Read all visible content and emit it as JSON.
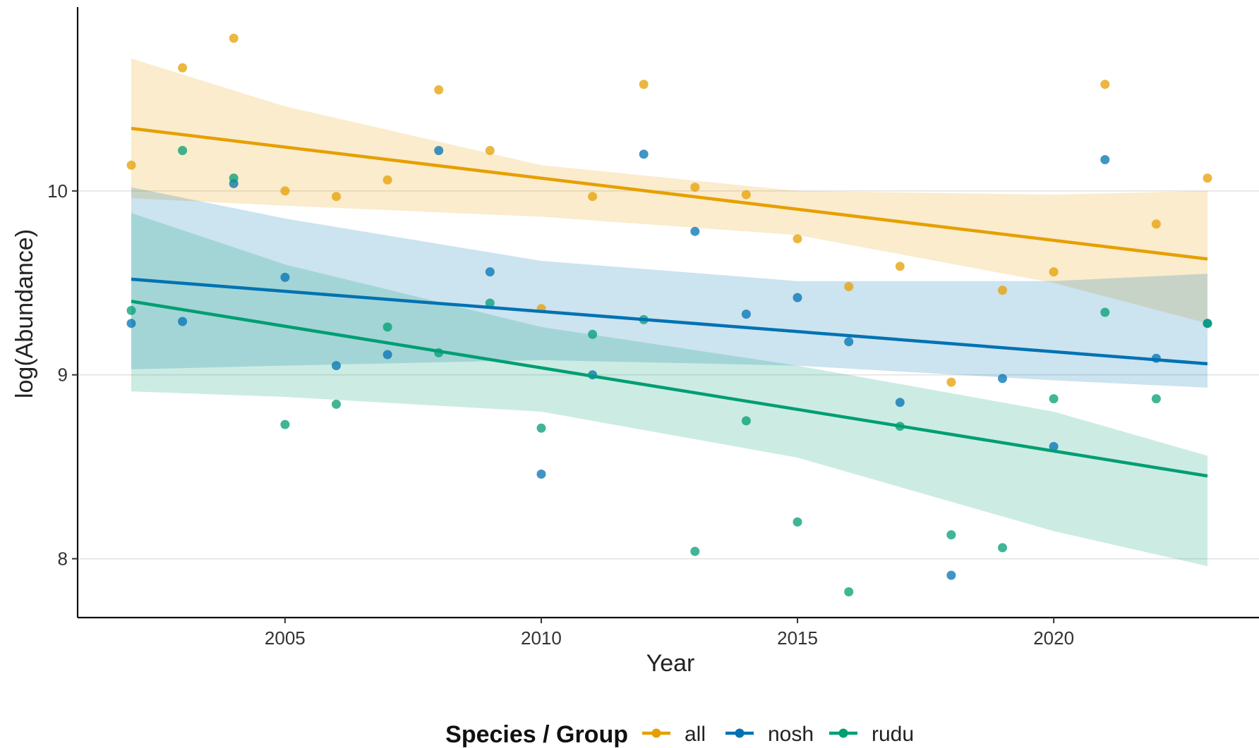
{
  "chart_data": {
    "type": "scatter",
    "title": "",
    "xlabel": "Year",
    "ylabel": "log(Abundance)",
    "xlim": [
      2002,
      2024
    ],
    "ylim": [
      7.68,
      11.0
    ],
    "x_ticks": [
      2005,
      2010,
      2015,
      2020
    ],
    "y_ticks": [
      8,
      9,
      10
    ],
    "grid": "horizontal major",
    "legend": {
      "title": "Species / Group",
      "position": "bottom"
    },
    "series": [
      {
        "name": "all",
        "color": "#E69F00",
        "points": [
          [
            2002,
            10.14
          ],
          [
            2003,
            10.67
          ],
          [
            2004,
            10.83
          ],
          [
            2005,
            10.0
          ],
          [
            2006,
            9.97
          ],
          [
            2007,
            10.06
          ],
          [
            2008,
            10.55
          ],
          [
            2009,
            10.22
          ],
          [
            2010,
            9.36
          ],
          [
            2011,
            9.97
          ],
          [
            2012,
            10.58
          ],
          [
            2013,
            10.02
          ],
          [
            2014,
            9.98
          ],
          [
            2015,
            9.74
          ],
          [
            2016,
            9.48
          ],
          [
            2017,
            9.59
          ],
          [
            2018,
            8.96
          ],
          [
            2019,
            9.46
          ],
          [
            2020,
            9.56
          ],
          [
            2021,
            10.58
          ],
          [
            2022,
            9.82
          ],
          [
            2023,
            10.07
          ]
        ],
        "fit": {
          "x": [
            2002,
            2023
          ],
          "y": [
            10.34,
            9.63
          ]
        },
        "ci_band": {
          "x": [
            2002,
            2005,
            2010,
            2015,
            2020,
            2023
          ],
          "lower": [
            9.96,
            9.92,
            9.86,
            9.76,
            9.5,
            9.28
          ],
          "upper": [
            10.72,
            10.46,
            10.14,
            10.0,
            9.98,
            10.0
          ]
        }
      },
      {
        "name": "nosh",
        "color": "#0072B2",
        "points": [
          [
            2002,
            9.28
          ],
          [
            2003,
            9.29
          ],
          [
            2004,
            10.04
          ],
          [
            2005,
            9.53
          ],
          [
            2006,
            9.05
          ],
          [
            2007,
            9.11
          ],
          [
            2008,
            10.22
          ],
          [
            2009,
            9.56
          ],
          [
            2010,
            8.46
          ],
          [
            2011,
            9.0
          ],
          [
            2012,
            10.2
          ],
          [
            2013,
            9.78
          ],
          [
            2014,
            9.33
          ],
          [
            2015,
            9.42
          ],
          [
            2016,
            9.18
          ],
          [
            2017,
            8.85
          ],
          [
            2018,
            7.91
          ],
          [
            2019,
            8.98
          ],
          [
            2020,
            8.61
          ],
          [
            2021,
            10.17
          ],
          [
            2022,
            9.09
          ],
          [
            2023,
            9.28
          ]
        ],
        "fit": {
          "x": [
            2002,
            2023
          ],
          "y": [
            9.52,
            9.06
          ]
        },
        "ci_band": {
          "x": [
            2002,
            2005,
            2010,
            2015,
            2020,
            2023
          ],
          "lower": [
            9.03,
            9.05,
            9.08,
            9.05,
            8.97,
            8.93
          ],
          "upper": [
            10.02,
            9.85,
            9.62,
            9.51,
            9.51,
            9.55
          ]
        }
      },
      {
        "name": "rudu",
        "color": "#009E73",
        "points": [
          [
            2002,
            9.35
          ],
          [
            2003,
            10.22
          ],
          [
            2004,
            10.07
          ],
          [
            2005,
            8.73
          ],
          [
            2006,
            8.84
          ],
          [
            2007,
            9.26
          ],
          [
            2008,
            9.12
          ],
          [
            2009,
            9.39
          ],
          [
            2010,
            8.71
          ],
          [
            2011,
            9.22
          ],
          [
            2012,
            9.3
          ],
          [
            2013,
            8.04
          ],
          [
            2014,
            8.75
          ],
          [
            2015,
            8.2
          ],
          [
            2016,
            7.82
          ],
          [
            2017,
            8.72
          ],
          [
            2018,
            8.13
          ],
          [
            2019,
            8.06
          ],
          [
            2020,
            8.87
          ],
          [
            2021,
            9.34
          ],
          [
            2022,
            8.87
          ],
          [
            2023,
            9.28
          ]
        ],
        "fit": {
          "x": [
            2002,
            2023
          ],
          "y": [
            9.4,
            8.45
          ]
        },
        "ci_band": {
          "x": [
            2002,
            2005,
            2010,
            2015,
            2020,
            2023
          ],
          "lower": [
            8.91,
            8.88,
            8.8,
            8.55,
            8.15,
            7.96
          ],
          "upper": [
            9.88,
            9.6,
            9.26,
            9.05,
            8.8,
            8.56
          ]
        }
      }
    ]
  }
}
